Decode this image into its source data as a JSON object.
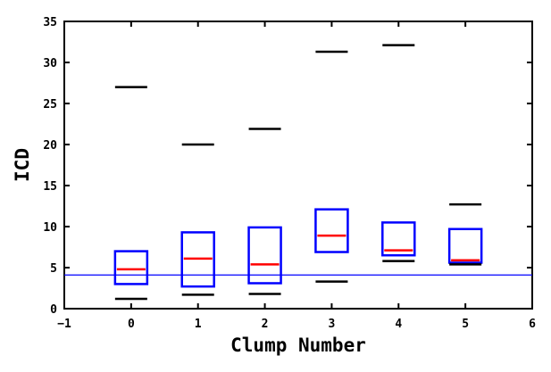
{
  "chart_data": {
    "type": "boxplot",
    "xlabel": "Clump Number",
    "ylabel": "ICD",
    "xlim": [
      -1,
      6
    ],
    "ylim": [
      0,
      35
    ],
    "xticks": [
      "−1",
      "0",
      "1",
      "2",
      "3",
      "4",
      "5",
      "6"
    ],
    "yticks": [
      "0",
      "5",
      "10",
      "15",
      "20",
      "25",
      "30",
      "35"
    ],
    "reference_line": {
      "y": 4.1,
      "color": "#0000ff"
    },
    "colors": {
      "box": "#0000ff",
      "median": "#ff0000",
      "extreme": "#000000"
    },
    "boxes": [
      {
        "x": 0,
        "min": 1.2,
        "q1": 3.0,
        "median": 4.8,
        "q3": 7.0,
        "max": 27.0
      },
      {
        "x": 1,
        "min": 1.7,
        "q1": 2.7,
        "median": 6.1,
        "q3": 9.3,
        "max": 20.0
      },
      {
        "x": 2,
        "min": 1.8,
        "q1": 3.1,
        "median": 5.4,
        "q3": 9.9,
        "max": 21.9
      },
      {
        "x": 3,
        "min": 3.3,
        "q1": 6.9,
        "median": 8.9,
        "q3": 12.1,
        "max": 31.3
      },
      {
        "x": 4,
        "min": 5.8,
        "q1": 6.5,
        "median": 7.1,
        "q3": 10.5,
        "max": 32.1
      },
      {
        "x": 5,
        "min": 5.4,
        "q1": 5.6,
        "median": 5.9,
        "q3": 9.7,
        "max": 12.7
      }
    ]
  }
}
